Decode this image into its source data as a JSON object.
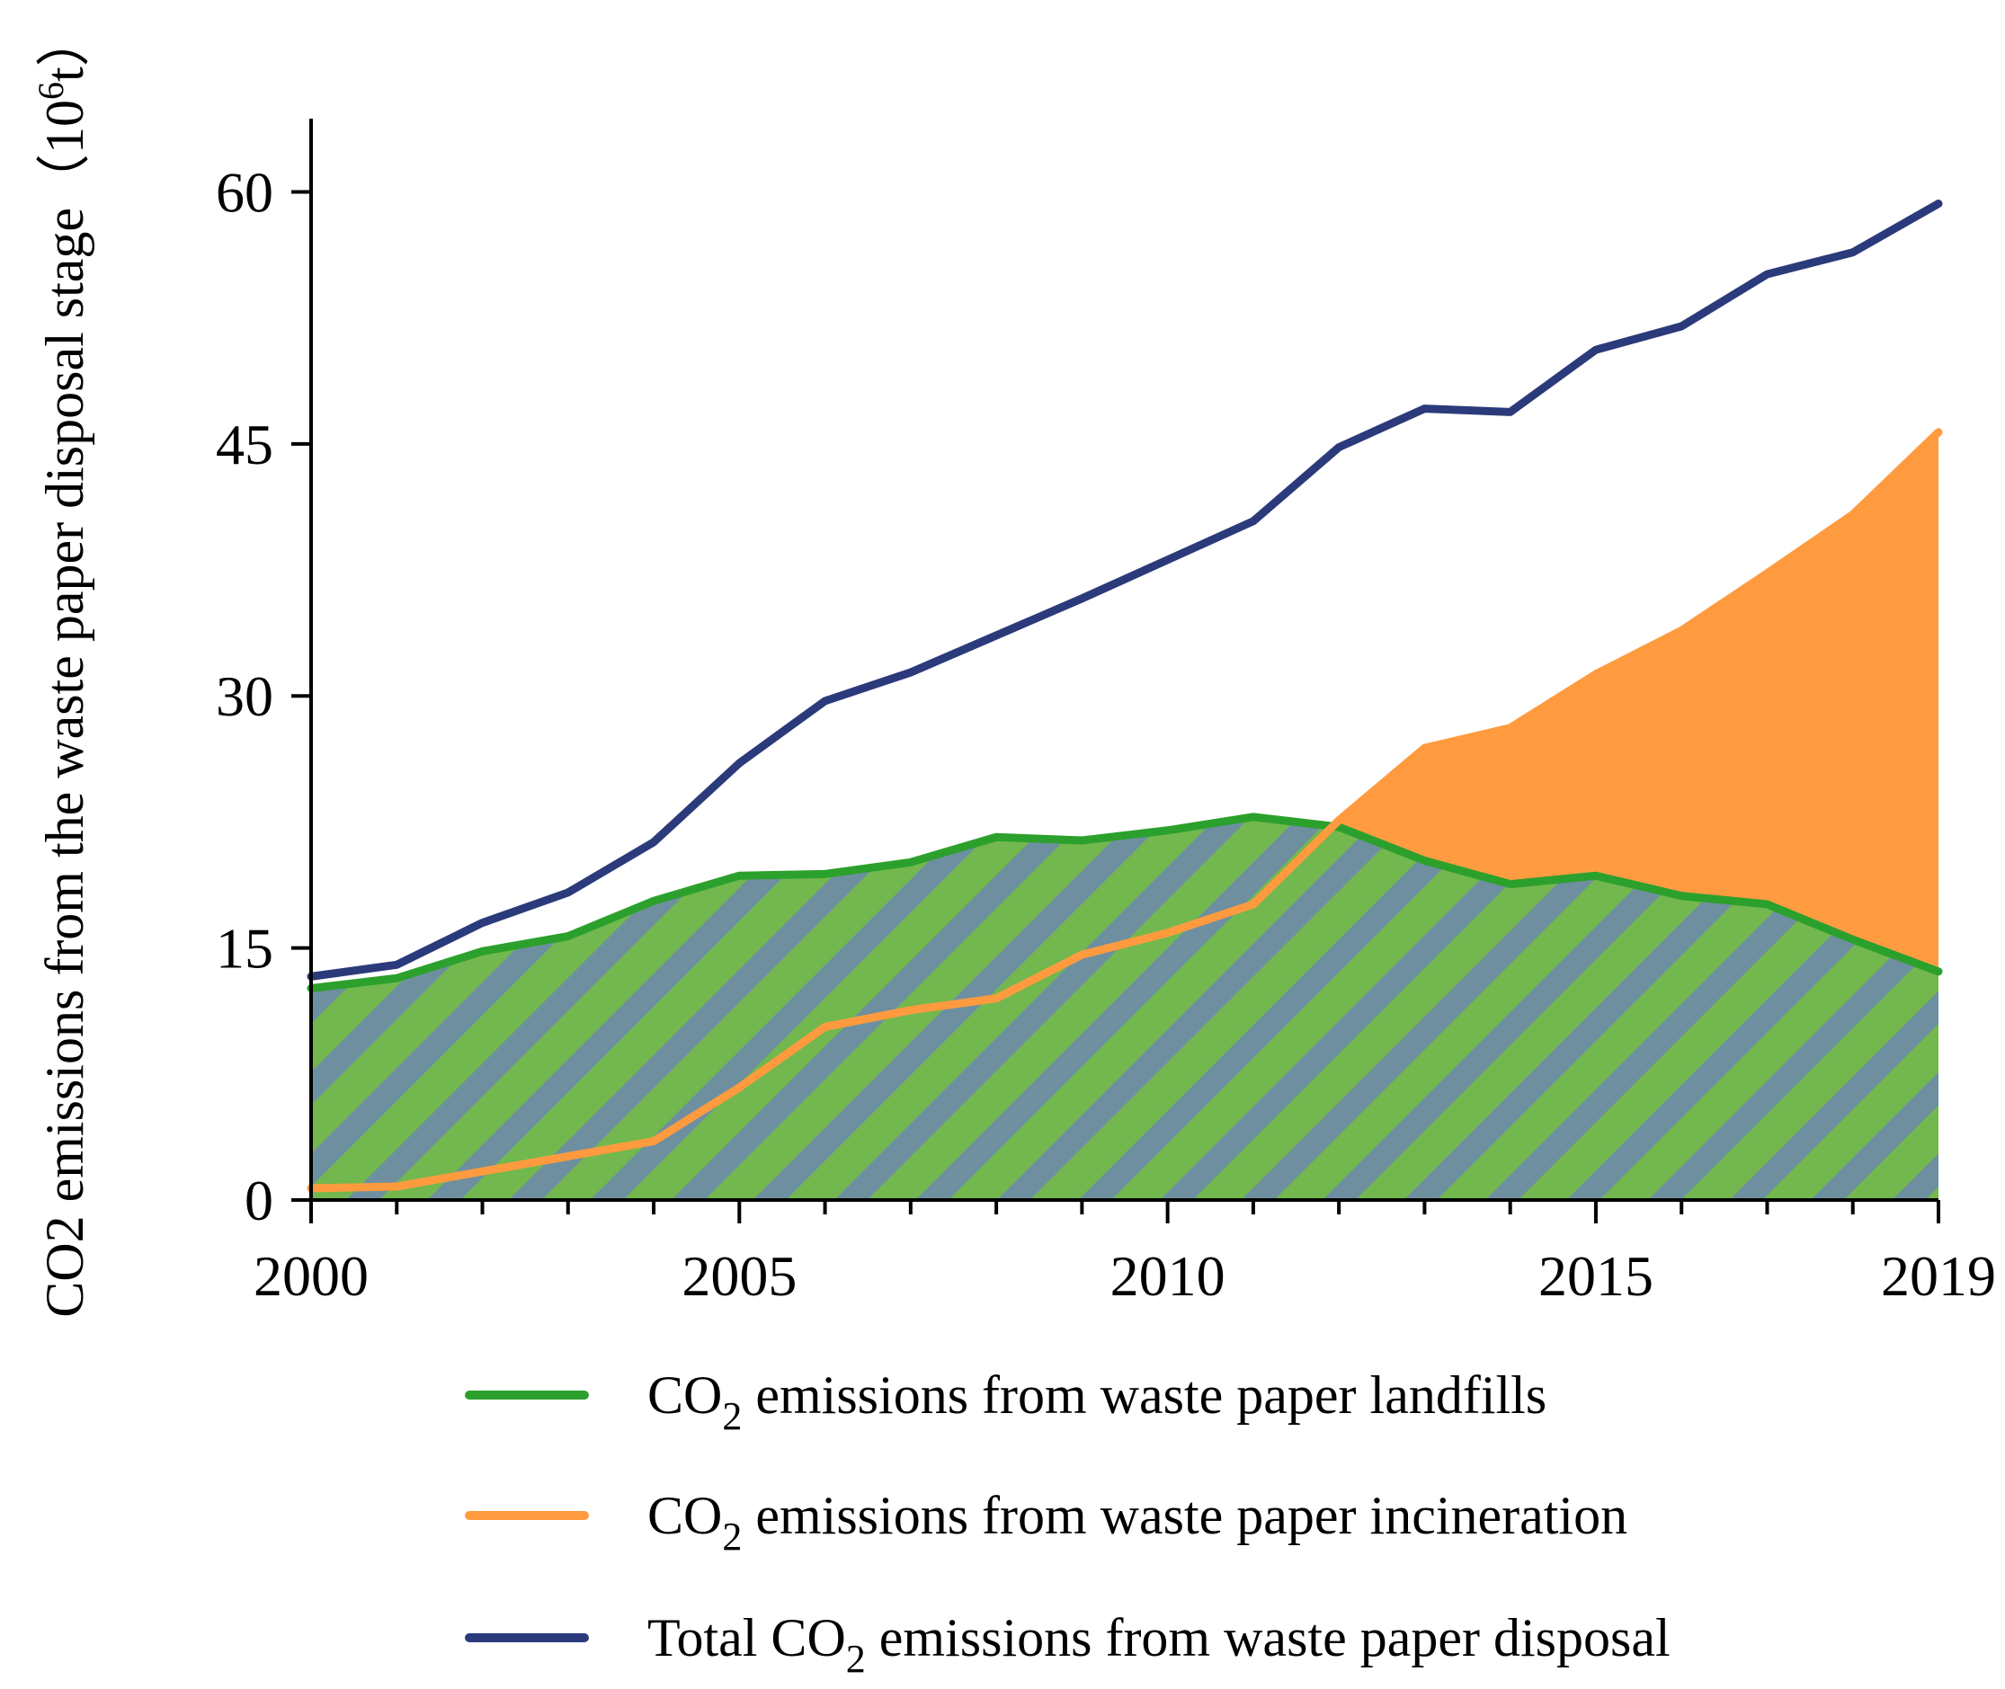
{
  "colors": {
    "landfill": "#2ca02c",
    "landfill_fill": "#72b84e",
    "hatch": "#6e8fa0",
    "incineration": "#ff9b3e",
    "incineration_fill": "#ff9c42",
    "total": "#2b3a7a",
    "axis": "#000000"
  },
  "chart_data": {
    "type": "line",
    "title": "",
    "xlabel": "",
    "ylabel": {
      "prefix": "CO",
      "sub": "2",
      "main": " emissions from the waste paper disposal stage（",
      "unit_base": "10",
      "unit_sup": "6",
      "unit_rest": "t）"
    },
    "xlim": [
      2000,
      2019
    ],
    "ylim": [
      0,
      65
    ],
    "x_ticks": [
      2000,
      2005,
      2010,
      2015,
      2019
    ],
    "y_ticks": [
      0,
      15,
      30,
      45,
      60
    ],
    "x": [
      2000,
      2001,
      2002,
      2003,
      2004,
      2005,
      2006,
      2007,
      2008,
      2009,
      2010,
      2011,
      2012,
      2013,
      2014,
      2015,
      2016,
      2017,
      2018,
      2019
    ],
    "series": [
      {
        "key": "landfill",
        "name": "CO2 emissions from waste paper landfills",
        "values": [
          12.6,
          13.2,
          14.8,
          15.7,
          17.8,
          19.3,
          19.4,
          20.1,
          21.6,
          21.4,
          22.0,
          22.8,
          22.2,
          20.2,
          18.8,
          19.3,
          18.1,
          17.6,
          15.5,
          13.6
        ]
      },
      {
        "key": "incineration",
        "name": "CO2 emissions from waste paper incineration",
        "values": [
          0.7,
          0.8,
          1.7,
          2.6,
          3.5,
          6.7,
          10.3,
          11.3,
          12.0,
          14.6,
          15.9,
          17.6,
          22.6,
          26.9,
          28.1,
          31.3,
          33.9,
          37.3,
          40.8,
          45.7
        ]
      },
      {
        "key": "total",
        "name": "Total CO2 emissions from waste paper disposal",
        "values": [
          13.3,
          14.0,
          16.5,
          18.3,
          21.3,
          26.0,
          29.7,
          31.4,
          33.6,
          35.8,
          38.1,
          40.4,
          44.8,
          47.1,
          46.9,
          50.6,
          52.0,
          55.1,
          56.4,
          59.3
        ]
      }
    ],
    "legend": [
      {
        "key": "landfill",
        "prefix": "CO",
        "sub": "2",
        "suffix": " emissions from waste paper landfills"
      },
      {
        "key": "incineration",
        "prefix": "CO",
        "sub": "2",
        "suffix": " emissions from waste paper incineration"
      },
      {
        "key": "total",
        "prefix": "Total CO",
        "sub": "2",
        "suffix": " emissions from waste paper disposal"
      }
    ],
    "legend_position": "bottom",
    "grid": false
  }
}
